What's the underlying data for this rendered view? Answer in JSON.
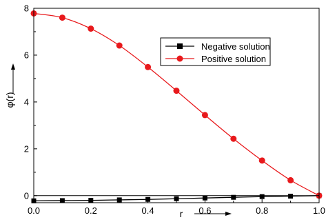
{
  "chart_data": {
    "type": "line",
    "title": "",
    "xlabel": "r",
    "ylabel": "φ(r)",
    "xlim": [
      0.0,
      1.0
    ],
    "ylim": [
      -0.3,
      8.0
    ],
    "xticks": [
      0.0,
      0.2,
      0.4,
      0.6,
      0.8,
      1.0
    ],
    "xtick_labels": [
      "0.0",
      "0.2",
      "0.4",
      "0.6",
      "0.8",
      "1.0"
    ],
    "yticks": [
      0,
      2,
      4,
      6,
      8
    ],
    "ytick_labels": [
      "0",
      "2",
      "4",
      "6",
      "8"
    ],
    "grid": false,
    "legend_position": "top-right",
    "zero_line": true,
    "series": [
      {
        "name": "Negative solution",
        "color": "#000000",
        "marker": "square",
        "x": [
          0.0,
          0.1,
          0.2,
          0.3,
          0.4,
          0.5,
          0.6,
          0.7,
          0.8,
          0.9,
          1.0
        ],
        "y": [
          -0.22,
          -0.21,
          -0.2,
          -0.18,
          -0.16,
          -0.13,
          -0.1,
          -0.07,
          -0.04,
          -0.02,
          0.0
        ]
      },
      {
        "name": "Positive solution",
        "color": "#e8191c",
        "marker": "circle",
        "x": [
          0.0,
          0.1,
          0.2,
          0.3,
          0.4,
          0.5,
          0.6,
          0.7,
          0.8,
          0.9,
          1.0
        ],
        "y": [
          7.78,
          7.6,
          7.13,
          6.41,
          5.49,
          4.48,
          3.44,
          2.43,
          1.5,
          0.66,
          0.0
        ]
      }
    ]
  }
}
